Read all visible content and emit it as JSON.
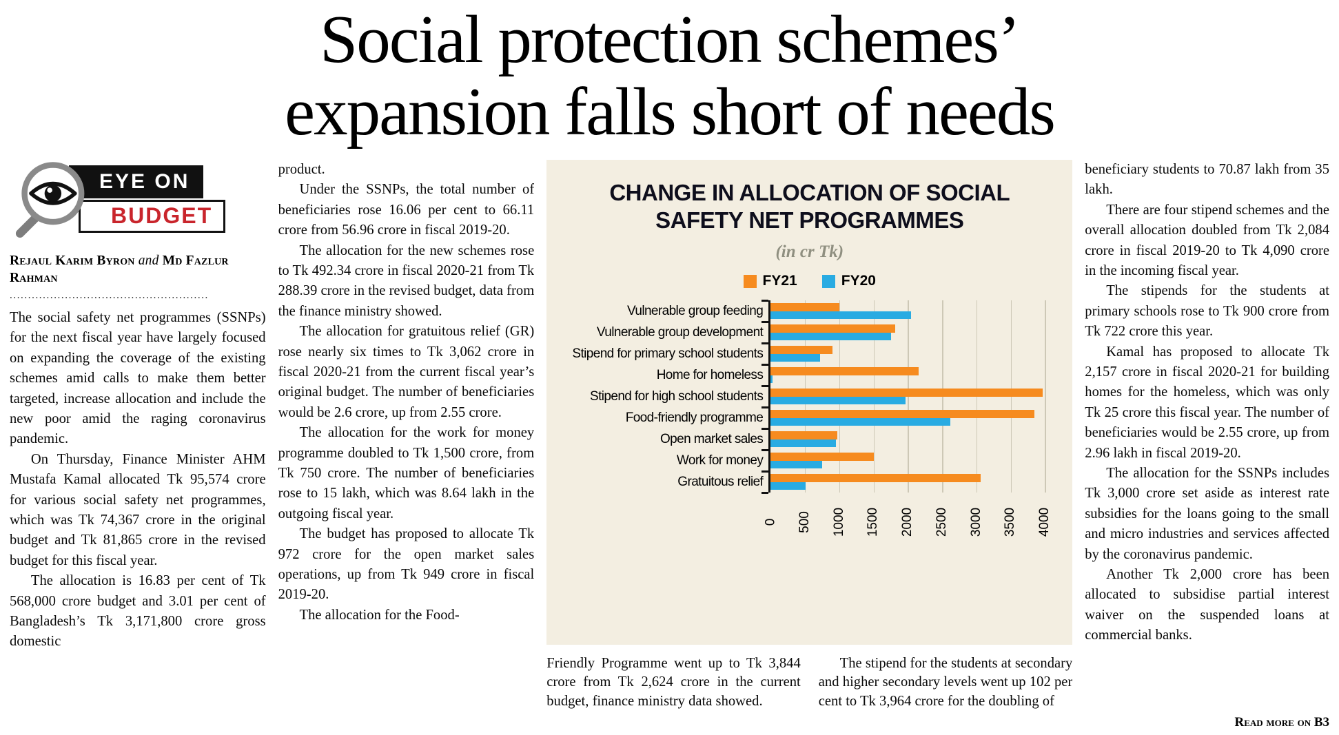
{
  "headline": {
    "line1": "Social protection schemes’",
    "line2": "expansion falls short of needs"
  },
  "logo": {
    "line1": "EYE ON",
    "line2": "BUDGET",
    "accent_red": "#c9252c"
  },
  "byline": {
    "author1": "Rejaul Karim Byron",
    "conjunction": "and",
    "author2": "Md Fazlur Rahman"
  },
  "separator_dots": "......................................................",
  "columns": {
    "col1": [
      "The social safety net programmes (SSNPs) for the next fiscal year have largely focused on expanding the coverage of the existing schemes amid calls to make them better targeted, increase allocation and include the new poor amid the raging coronavirus pandemic.",
      "On Thursday, Finance Minister AHM Mustafa Kamal allocated Tk 95,574 crore for various social safety net programmes, which was Tk 74,367 crore in the original budget and Tk 81,865 crore in the revised budget for this fiscal year.",
      "The allocation is 16.83 per cent of Tk 568,000 crore budget and 3.01 per cent of Bangladesh’s Tk 3,171,800 crore gross domestic"
    ],
    "col2": [
      "product.",
      "Under the SSNPs, the total number of beneficiaries rose 16.06 per cent to 66.11 crore from 56.96 crore in fiscal 2019-20.",
      "The allocation for the new schemes rose to Tk 492.34 crore in fiscal 2020-21 from Tk 288.39 crore in the revised budget, data from the finance ministry showed.",
      "The allocation for gratuitous relief (GR) rose nearly six times to Tk 3,062 crore in fiscal 2020-21 from the current fiscal year’s original budget. The number of beneficiaries would be 2.6 crore, up from 2.55 crore.",
      "The allocation for the work for money programme doubled to Tk 1,500 crore, from Tk 750 crore. The number of beneficiaries rose to 15 lakh, which was 8.64 lakh in the outgoing fiscal year.",
      "The budget has proposed to allocate Tk 972 crore for the open market sales operations, up from Tk 949 crore in fiscal 2019-20.",
      "The allocation for the Food-"
    ],
    "under_chart_left": [
      "Friendly Programme went up to Tk 3,844 crore from Tk 2,624 crore in the current budget, finance ministry data showed."
    ],
    "under_chart_right": [
      "The stipend for the students at secondary and higher secondary levels went up 102 per cent to Tk 3,964 crore for the doubling of"
    ],
    "col5": [
      "beneficiary students to 70.87 lakh from 35 lakh.",
      "There are four stipend schemes and the overall allocation doubled from Tk 2,084 crore in fiscal 2019-20 to Tk 4,090 crore in the incoming fiscal year.",
      "The stipends for the students at primary schools rose to Tk 900 crore from Tk 722 crore this year.",
      "Kamal has proposed to allocate Tk 2,157 crore in fiscal 2020-21 for building homes for the homeless, which was only Tk 25 crore this fiscal year. The number of beneficiaries would be 2.55 crore, up from 2.96 lakh in fiscal 2019-20.",
      "The allocation for the SSNPs includes Tk 3,000 crore set aside as interest rate subsidies for the loans going to the small and micro industries and services affected by the coronavirus pandemic.",
      "Another Tk 2,000 crore has been allocated to subsidise partial interest waiver on the suspended loans at commercial banks."
    ]
  },
  "read_more": "Read more on B3",
  "chart_data": {
    "type": "bar",
    "orientation": "horizontal",
    "title": "CHANGE IN ALLOCATION OF SOCIAL SAFETY NET PROGRAMMES",
    "title_lines": [
      "CHANGE IN ALLOCATION OF SOCIAL",
      "SAFETY NET PROGRAMMES"
    ],
    "subtitle": "(in cr Tk)",
    "background": "#f3eee1",
    "legend_position": "top",
    "grid": true,
    "categories": [
      "Vulnerable group feeding",
      "Vulnerable group development",
      "Stipend for primary school students",
      "Home for homeless",
      "Stipend for high school students",
      "Food-friendly programme",
      "Open market sales",
      "Work for money",
      "Gratuitous relief"
    ],
    "series": [
      {
        "name": "FY21",
        "color": "#f68b1f",
        "values": [
          1000,
          1820,
          900,
          2157,
          3964,
          3844,
          972,
          1500,
          3062
        ]
      },
      {
        "name": "FY20",
        "color": "#29abe2",
        "values": [
          2050,
          1760,
          722,
          25,
          1962,
          2624,
          949,
          750,
          510
        ]
      }
    ],
    "x_ticks": [
      0,
      500,
      1000,
      1500,
      2000,
      2500,
      3000,
      3500,
      4000
    ],
    "xlim": [
      0,
      4200
    ],
    "x_max": 4200
  }
}
